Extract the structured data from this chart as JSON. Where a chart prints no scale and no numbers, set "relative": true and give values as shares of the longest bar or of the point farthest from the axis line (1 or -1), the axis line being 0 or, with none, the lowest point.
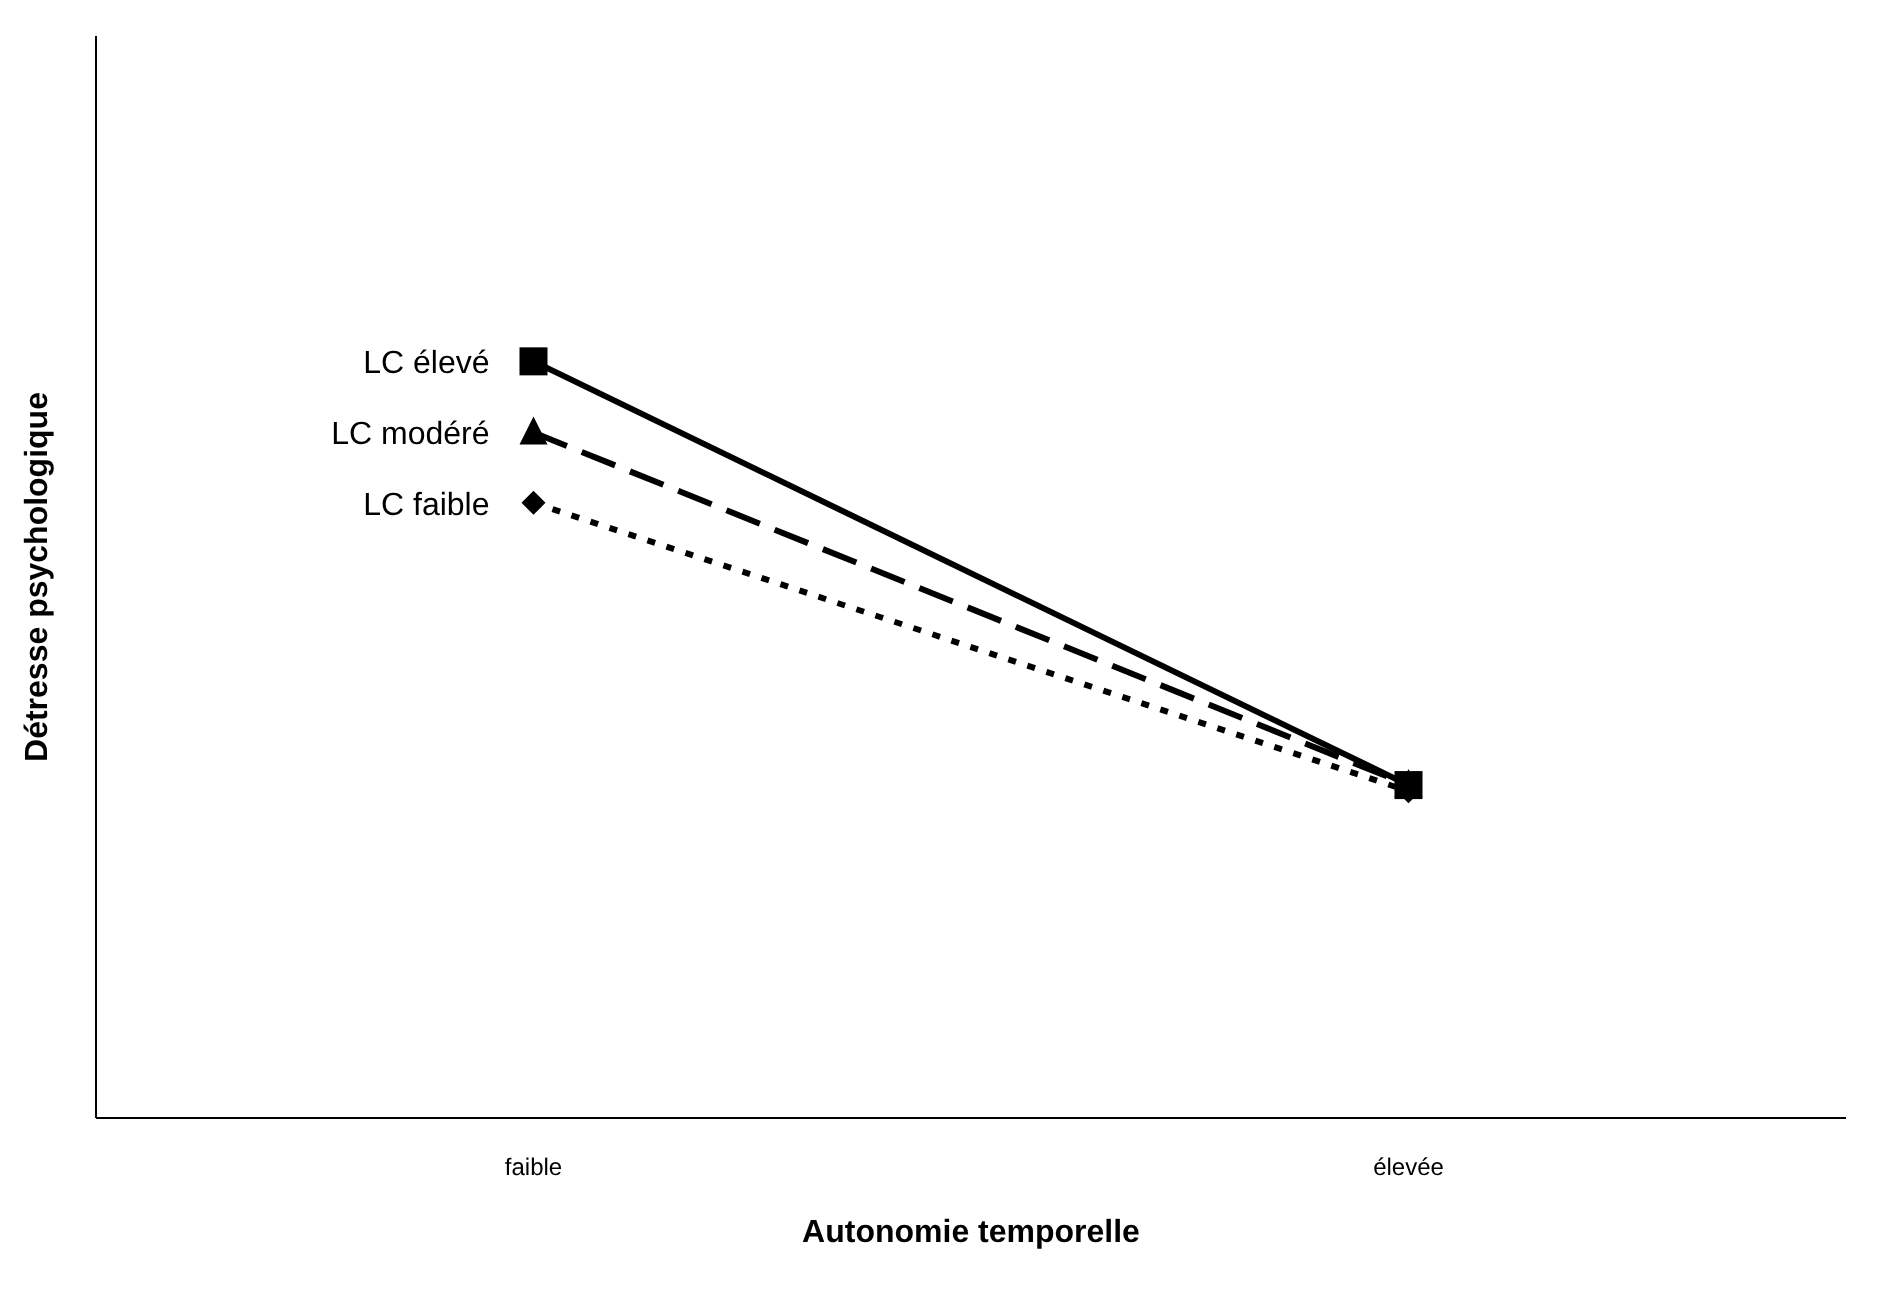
{
  "chart_data": {
    "type": "line",
    "relative": true,
    "xlabel": "Autonomie temporelle",
    "ylabel": "Détresse psychologique",
    "categories": [
      "faible",
      "élevée"
    ],
    "legend": false,
    "grid": false,
    "series": [
      {
        "name": "LC élevé",
        "color": "#000000",
        "values": [
          1,
          0.44
        ],
        "marker": "square",
        "line_style": "solid"
      },
      {
        "name": "LC modéré",
        "color": "#000000",
        "values": [
          0.906,
          0.44
        ],
        "marker": "triangle",
        "line_style": "dashed"
      },
      {
        "name": "LC faible",
        "color": "#000000",
        "values": [
          0.813,
          0.432
        ],
        "marker": "diamond",
        "line_style": "dotted"
      }
    ]
  }
}
